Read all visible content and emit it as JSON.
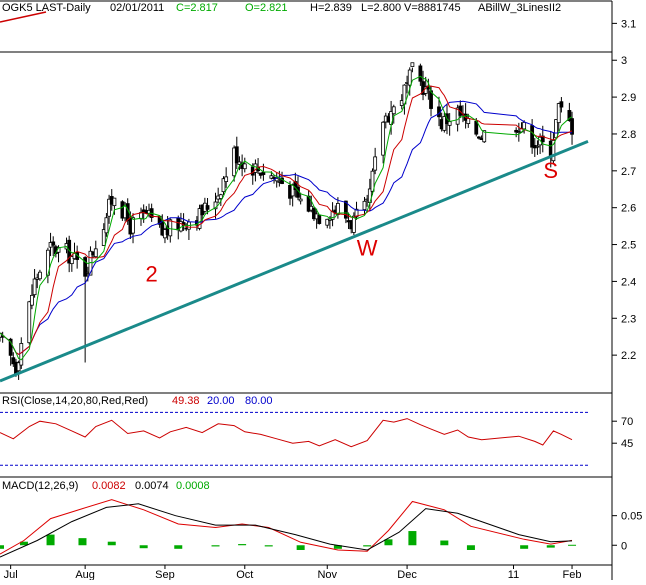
{
  "colors": {
    "background": "#ffffff",
    "candles": "#000000",
    "ma_fast": "#00aa00",
    "ma_mid": "#cc0000",
    "ma_slow": "#0000cc",
    "trendline": "#1a8a8a",
    "annotation": "#dd0000",
    "rsi_line": "#cc0000",
    "rsi_levels": "#0000cc",
    "macd_line": "#000000",
    "macd_signal": "#dd0000",
    "macd_hist": "#00aa00"
  },
  "header": {
    "symbol": "OGK5 LAST-Daily",
    "date": "02/01/2011",
    "close": "C=2.817",
    "open": "O=2.821",
    "high": "H=2.839",
    "low": "L=2.800",
    "volume": "V=8881745",
    "study": "ABillW_3LinesII2"
  },
  "rsi_panel": {
    "title": "RSI(Close,14,20,80,Red,Red)",
    "value": "49.38",
    "lower": "20.00",
    "upper": "80.00"
  },
  "macd_panel": {
    "title": "MACD(12,26,9)",
    "macd": "0.0082",
    "signal": "0.0074",
    "hist": "0.0008"
  },
  "annotations": [
    {
      "text": "2",
      "date": "2010-08-27",
      "price": 2.4
    },
    {
      "text": "W",
      "date": "2010-11-16",
      "price": 2.47
    },
    {
      "text": "S",
      "date": "2011-01-24",
      "price": 2.68
    }
  ],
  "chart_data": [
    {
      "type": "candlestick",
      "title": "",
      "x_type": "date",
      "xlim": [
        "2010-07-01",
        "2011-02-07"
      ],
      "ylim": [
        2.1,
        3.12
      ],
      "y_axis_side": "right",
      "y_ticks": [
        2.2,
        2.3,
        2.4,
        2.5,
        2.6,
        2.7,
        2.8,
        2.9,
        3,
        3.1
      ],
      "x_ticks": [
        {
          "label": "Jul",
          "date": "2010-07-05"
        },
        {
          "label": "Aug",
          "date": "2010-08-02"
        },
        {
          "label": "Sep",
          "date": "2010-09-01"
        },
        {
          "label": "Oct",
          "date": "2010-10-01"
        },
        {
          "label": "Nov",
          "date": "2010-11-01"
        },
        {
          "label": "Dec",
          "date": "2010-12-01"
        },
        {
          "label": "11",
          "date": "2011-01-10"
        },
        {
          "label": "Feb",
          "date": "2011-02-01"
        }
      ],
      "grid": false,
      "reference_line": 3.0,
      "key_closes": [
        [
          "2010-07-01",
          2.24
        ],
        [
          "2010-07-07",
          2.17
        ],
        [
          "2010-07-14",
          2.4
        ],
        [
          "2010-07-20",
          2.49
        ],
        [
          "2010-07-26",
          2.48
        ],
        [
          "2010-08-02",
          2.43
        ],
        [
          "2010-08-09",
          2.56
        ],
        [
          "2010-08-13",
          2.64
        ],
        [
          "2010-08-19",
          2.55
        ],
        [
          "2010-08-25",
          2.58
        ],
        [
          "2010-08-31",
          2.53
        ],
        [
          "2010-09-07",
          2.56
        ],
        [
          "2010-09-14",
          2.58
        ],
        [
          "2010-09-21",
          2.64
        ],
        [
          "2010-09-27",
          2.75
        ],
        [
          "2010-10-01",
          2.72
        ],
        [
          "2010-10-08",
          2.7
        ],
        [
          "2010-10-15",
          2.67
        ],
        [
          "2010-10-22",
          2.62
        ],
        [
          "2010-10-29",
          2.58
        ],
        [
          "2010-11-05",
          2.6
        ],
        [
          "2010-11-10",
          2.56
        ],
        [
          "2010-11-16",
          2.6
        ],
        [
          "2010-11-22",
          2.84
        ],
        [
          "2010-11-26",
          2.87
        ],
        [
          "2010-12-01",
          2.93
        ],
        [
          "2010-12-03",
          2.97
        ],
        [
          "2010-12-08",
          2.92
        ],
        [
          "2010-12-14",
          2.83
        ],
        [
          "2010-12-20",
          2.86
        ],
        [
          "2010-12-24",
          2.82
        ],
        [
          "2010-12-29",
          2.8
        ],
        [
          "2011-01-12",
          2.83
        ],
        [
          "2011-01-18",
          2.78
        ],
        [
          "2011-01-24",
          2.76
        ],
        [
          "2011-01-27",
          2.87
        ],
        [
          "2011-02-01",
          2.82
        ]
      ],
      "extreme_bars": [
        {
          "date": "2010-08-02",
          "low": 2.18
        },
        {
          "date": "2010-12-03",
          "high": 2.98
        }
      ],
      "moving_averages": [
        {
          "color_key": "ma_fast",
          "period_guess": 5
        },
        {
          "color_key": "ma_mid",
          "period_guess": 10
        },
        {
          "color_key": "ma_slow",
          "period_guess": 20
        }
      ],
      "trendline": {
        "start": [
          "2010-07-01",
          2.13
        ],
        "end": [
          "2011-02-07",
          2.78
        ]
      }
    },
    {
      "type": "line",
      "title": "RSI(Close,14,20,80,Red,Red)",
      "ylim": [
        10,
        85
      ],
      "y_ticks": [
        45,
        70
      ],
      "levels": [
        20,
        80
      ],
      "series": [
        {
          "name": "RSI",
          "points": [
            [
              "2010-07-01",
              57
            ],
            [
              "2010-07-06",
              50
            ],
            [
              "2010-07-12",
              64
            ],
            [
              "2010-07-16",
              70
            ],
            [
              "2010-07-22",
              67
            ],
            [
              "2010-07-28",
              59
            ],
            [
              "2010-08-02",
              52
            ],
            [
              "2010-08-06",
              64
            ],
            [
              "2010-08-12",
              71
            ],
            [
              "2010-08-18",
              56
            ],
            [
              "2010-08-24",
              59
            ],
            [
              "2010-08-30",
              51
            ],
            [
              "2010-09-03",
              58
            ],
            [
              "2010-09-09",
              63
            ],
            [
              "2010-09-15",
              57
            ],
            [
              "2010-09-21",
              67
            ],
            [
              "2010-09-27",
              65
            ],
            [
              "2010-10-01",
              58
            ],
            [
              "2010-10-07",
              55
            ],
            [
              "2010-10-13",
              50
            ],
            [
              "2010-10-19",
              45
            ],
            [
              "2010-10-25",
              47
            ],
            [
              "2010-10-29",
              42
            ],
            [
              "2010-11-04",
              49
            ],
            [
              "2010-11-10",
              41
            ],
            [
              "2010-11-16",
              48
            ],
            [
              "2010-11-22",
              71
            ],
            [
              "2010-11-26",
              69
            ],
            [
              "2010-12-01",
              73
            ],
            [
              "2010-12-06",
              66
            ],
            [
              "2010-12-10",
              61
            ],
            [
              "2010-12-15",
              55
            ],
            [
              "2010-12-20",
              60
            ],
            [
              "2010-12-24",
              52
            ],
            [
              "2010-12-29",
              49
            ],
            [
              "2011-01-12",
              53
            ],
            [
              "2011-01-18",
              47
            ],
            [
              "2011-01-21",
              43
            ],
            [
              "2011-01-25",
              59
            ],
            [
              "2011-01-28",
              55
            ],
            [
              "2011-02-01",
              49
            ]
          ]
        }
      ]
    },
    {
      "type": "bar",
      "title": "MACD(12,26,9)",
      "ylim": [
        -0.03,
        0.09
      ],
      "y_ticks": [
        0,
        0.05
      ],
      "series": [
        {
          "name": "MACD",
          "points": [
            [
              "2010-07-01",
              -0.015
            ],
            [
              "2010-07-10",
              0.008
            ],
            [
              "2010-07-20",
              0.045
            ],
            [
              "2010-08-01",
              0.062
            ],
            [
              "2010-08-12",
              0.077
            ],
            [
              "2010-08-24",
              0.06
            ],
            [
              "2010-09-06",
              0.036
            ],
            [
              "2010-09-20",
              0.03
            ],
            [
              "2010-09-30",
              0.036
            ],
            [
              "2010-10-10",
              0.03
            ],
            [
              "2010-10-22",
              0.005
            ],
            [
              "2010-11-05",
              -0.008
            ],
            [
              "2010-11-16",
              -0.01
            ],
            [
              "2010-11-24",
              0.025
            ],
            [
              "2010-12-03",
              0.074
            ],
            [
              "2010-12-15",
              0.06
            ],
            [
              "2010-12-25",
              0.032
            ],
            [
              "2011-01-14",
              0.01
            ],
            [
              "2011-01-24",
              0.002
            ],
            [
              "2011-02-01",
              0.0082
            ]
          ]
        },
        {
          "name": "Signal",
          "points": [
            [
              "2010-07-01",
              -0.02
            ],
            [
              "2010-07-15",
              0.008
            ],
            [
              "2010-07-28",
              0.04
            ],
            [
              "2010-08-10",
              0.064
            ],
            [
              "2010-08-22",
              0.07
            ],
            [
              "2010-09-05",
              0.05
            ],
            [
              "2010-09-20",
              0.034
            ],
            [
              "2010-10-05",
              0.034
            ],
            [
              "2010-10-20",
              0.018
            ],
            [
              "2010-11-02",
              0.002
            ],
            [
              "2010-11-16",
              -0.008
            ],
            [
              "2010-11-28",
              0.022
            ],
            [
              "2010-12-08",
              0.062
            ],
            [
              "2010-12-20",
              0.054
            ],
            [
              "2011-01-12",
              0.018
            ],
            [
              "2011-01-24",
              0.006
            ],
            [
              "2011-02-01",
              0.0074
            ]
          ]
        },
        {
          "name": "Histogram",
          "points": [
            [
              "2010-07-01",
              -0.006
            ],
            [
              "2010-07-10",
              0.006
            ],
            [
              "2010-07-20",
              0.018
            ],
            [
              "2010-08-01",
              0.012
            ],
            [
              "2010-08-12",
              0.006
            ],
            [
              "2010-08-24",
              -0.005
            ],
            [
              "2010-09-06",
              -0.006
            ],
            [
              "2010-09-20",
              -0.002
            ],
            [
              "2010-09-30",
              0.002
            ],
            [
              "2010-10-10",
              -0.002
            ],
            [
              "2010-10-22",
              -0.008
            ],
            [
              "2010-11-05",
              -0.006
            ],
            [
              "2010-11-16",
              -0.002
            ],
            [
              "2010-11-24",
              0.01
            ],
            [
              "2010-12-03",
              0.024
            ],
            [
              "2010-12-15",
              0.008
            ],
            [
              "2010-12-25",
              -0.008
            ],
            [
              "2011-01-14",
              -0.006
            ],
            [
              "2011-01-24",
              -0.004
            ],
            [
              "2011-02-01",
              0.0008
            ]
          ]
        }
      ]
    }
  ]
}
